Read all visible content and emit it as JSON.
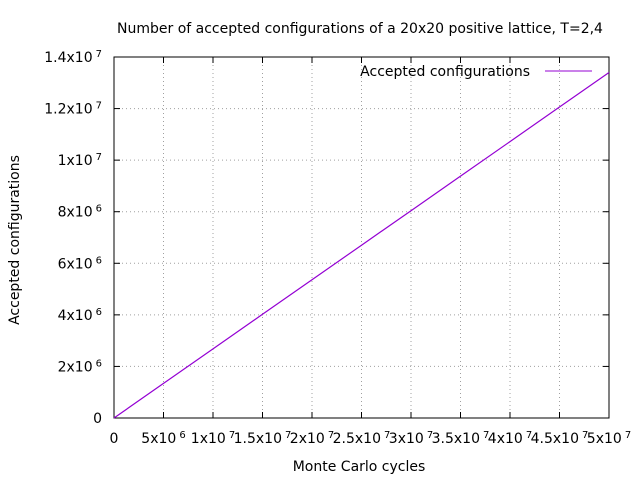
{
  "chart_data": {
    "type": "line",
    "title": "Number of accepted configurations of a 20x20 positive lattice, T=2,4",
    "xlabel": "Monte Carlo cycles",
    "ylabel": "Accepted configurations",
    "xlim": [
      0,
      50000000
    ],
    "ylim": [
      0,
      14000000
    ],
    "grid": true,
    "legend_position": "top-right",
    "x_ticks": [
      {
        "base": "0",
        "exp": ""
      },
      {
        "base": "5x10",
        "exp": "6"
      },
      {
        "base": "1x10",
        "exp": "7"
      },
      {
        "base": "1.5x10",
        "exp": "7"
      },
      {
        "base": "2x10",
        "exp": "7"
      },
      {
        "base": "2.5x10",
        "exp": "7"
      },
      {
        "base": "3x10",
        "exp": "7"
      },
      {
        "base": "3.5x10",
        "exp": "7"
      },
      {
        "base": "4x10",
        "exp": "7"
      },
      {
        "base": "4.5x10",
        "exp": "7"
      },
      {
        "base": "5x10",
        "exp": "7"
      }
    ],
    "y_ticks": [
      {
        "base": "0",
        "exp": ""
      },
      {
        "base": "2x10",
        "exp": "6"
      },
      {
        "base": "4x10",
        "exp": "6"
      },
      {
        "base": "6x10",
        "exp": "6"
      },
      {
        "base": "8x10",
        "exp": "6"
      },
      {
        "base": "1x10",
        "exp": "7"
      },
      {
        "base": "1.2x10",
        "exp": "7"
      },
      {
        "base": "1.4x10",
        "exp": "7"
      }
    ],
    "series": [
      {
        "name": "Accepted configurations",
        "color": "#9400d3",
        "x": [
          0,
          5000000,
          10000000,
          15000000,
          20000000,
          25000000,
          30000000,
          35000000,
          40000000,
          45000000,
          50000000
        ],
        "y": [
          0,
          1340000,
          2680000,
          4020000,
          5360000,
          6700000,
          8040000,
          9380000,
          10720000,
          12060000,
          13400000
        ]
      }
    ]
  }
}
